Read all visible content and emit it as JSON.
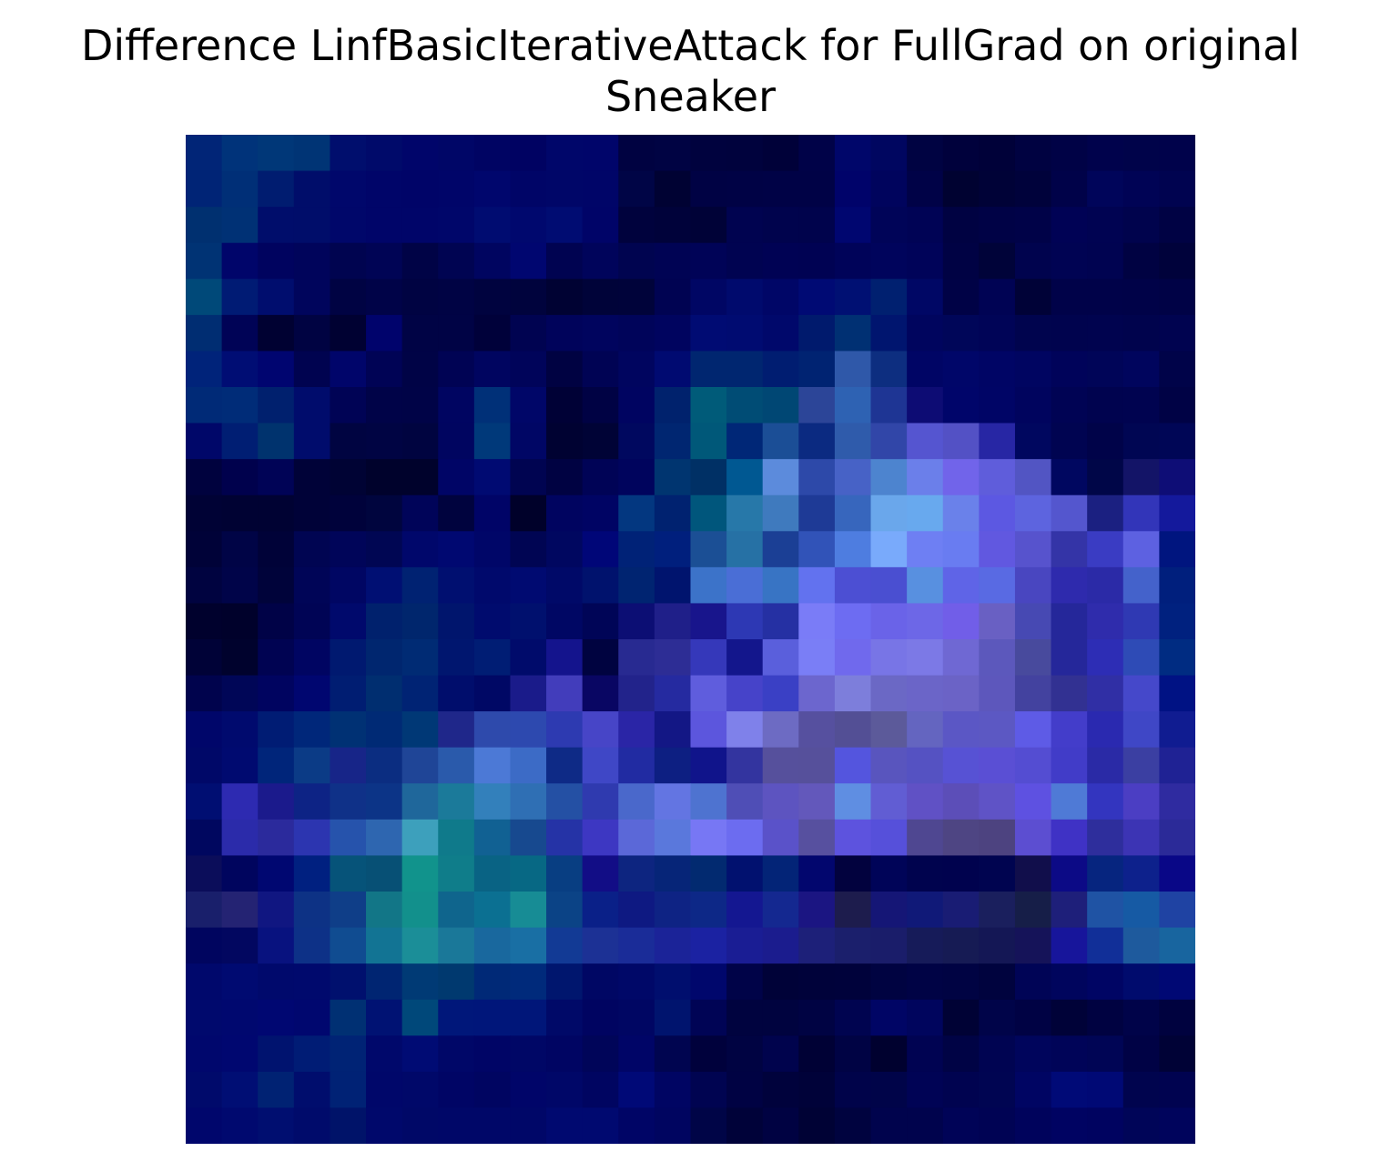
{
  "chart_data": {
    "type": "heatmap",
    "title_line1": "Difference LinfBasicIterativeAttack for FullGrad on original",
    "title_line2": "Sneaker",
    "xlabel": "",
    "ylabel": "",
    "axes_visible": false,
    "grid": false,
    "rows": 28,
    "cols": 28,
    "note_colors": "cell colors row-major, as rendered in the image",
    "cells": [
      [
        "#012577",
        "#00337a",
        "#003778",
        "#003475",
        "#000e6d",
        "#000a6a",
        "#00056a",
        "#000667",
        "#000463",
        "#000262",
        "#00066a",
        "#00056a",
        "#000241",
        "#000343",
        "#00023e",
        "#00023d",
        "#000139",
        "#000248",
        "#00066a",
        "#000660",
        "#000342",
        "#00013c",
        "#000139",
        "#000241",
        "#000246",
        "#00024c",
        "#00034a",
        "#00024b"
      ],
      [
        "#002476",
        "#002f77",
        "#001c70",
        "#000d6a",
        "#00076b",
        "#000569",
        "#000468",
        "#000569",
        "#00066d",
        "#000567",
        "#000668",
        "#000568",
        "#000546",
        "#000233",
        "#000244",
        "#000245",
        "#000246",
        "#000246",
        "#00036a",
        "#00045d",
        "#000247",
        "#000231",
        "#000237",
        "#00023b",
        "#000249",
        "#00055a",
        "#000355",
        "#000350"
      ],
      [
        "#003070",
        "#003175",
        "#000d6b",
        "#000d6a",
        "#00076a",
        "#000569",
        "#000569",
        "#00066a",
        "#000c71",
        "#00086e",
        "#000c72",
        "#000468",
        "#00023d",
        "#00023a",
        "#000237",
        "#000350",
        "#00034d",
        "#00034c",
        "#000670",
        "#000458",
        "#000355",
        "#000242",
        "#000246",
        "#000248",
        "#000255",
        "#000352",
        "#00034d",
        "#000244"
      ],
      [
        "#003374",
        "#00056a",
        "#00035f",
        "#00045b",
        "#000450",
        "#000455",
        "#000346",
        "#000452",
        "#000560",
        "#000670",
        "#000351",
        "#00045b",
        "#000450",
        "#000354",
        "#000357",
        "#000351",
        "#000254",
        "#000253",
        "#000359",
        "#00045c",
        "#000359",
        "#000244",
        "#000339",
        "#00034e",
        "#000353",
        "#000351",
        "#000242",
        "#00023b"
      ],
      [
        "#004979",
        "#001b74",
        "#000d6e",
        "#00055c",
        "#000343",
        "#000348",
        "#000342",
        "#000344",
        "#00033f",
        "#00033d",
        "#000233",
        "#000339",
        "#00033a",
        "#000352",
        "#000664",
        "#000a6d",
        "#000667",
        "#000a74",
        "#001073",
        "#002070",
        "#000765",
        "#000246",
        "#000354",
        "#000237",
        "#000249",
        "#000249",
        "#000248",
        "#000246"
      ],
      [
        "#002d72",
        "#000356",
        "#000132",
        "#000342",
        "#000132",
        "#00036c",
        "#000345",
        "#000345",
        "#00013a",
        "#000351",
        "#00035b",
        "#00045e",
        "#00045a",
        "#00045f",
        "#000b73",
        "#000b71",
        "#00086b",
        "#001a6d",
        "#003073",
        "#00156f",
        "#00055e",
        "#000659",
        "#000457",
        "#00044e",
        "#00034e",
        "#00034f",
        "#00034d",
        "#000350"
      ],
      [
        "#00237a",
        "#000d74",
        "#000570",
        "#000350",
        "#00056a",
        "#000355",
        "#000346",
        "#000354",
        "#000560",
        "#00045a",
        "#000242",
        "#000354",
        "#00055f",
        "#000a71",
        "#002670",
        "#002670",
        "#001d71",
        "#002372",
        "#2f58a9",
        "#0d2e80",
        "#000565",
        "#000669",
        "#000565",
        "#000561",
        "#00035a",
        "#000558",
        "#00055d",
        "#000349"
      ],
      [
        "#002a77",
        "#002c78",
        "#00206e",
        "#000c6c",
        "#000355",
        "#000348",
        "#000347",
        "#000561",
        "#003078",
        "#000668",
        "#000136",
        "#000244",
        "#000461",
        "#00226d",
        "#005b79",
        "#004c75",
        "#004774",
        "#2c4598",
        "#2e62b3",
        "#1e3594",
        "#0d0c74",
        "#00056a",
        "#000566",
        "#00045e",
        "#000354",
        "#00034f",
        "#000350",
        "#000245"
      ],
      [
        "#000769",
        "#001e73",
        "#00336e",
        "#000c6c",
        "#000441",
        "#000443",
        "#000440",
        "#000560",
        "#00397a",
        "#000665",
        "#000232",
        "#000336",
        "#00085f",
        "#002671",
        "#005879",
        "#002777",
        "#1b4e96",
        "#0b2a81",
        "#2f5bab",
        "#3146a8",
        "#5555d0",
        "#5351c5",
        "#2726a4",
        "#00075f",
        "#000451",
        "#000349",
        "#000653",
        "#000656"
      ],
      [
        "#00023e",
        "#00014d",
        "#000356",
        "#000238",
        "#000334",
        "#00022c",
        "#00022c",
        "#000566",
        "#000a72",
        "#000451",
        "#000242",
        "#000356",
        "#00045d",
        "#003570",
        "#003065",
        "#005892",
        "#5c8bdc",
        "#2d49a9",
        "#4762c6",
        "#4d84cf",
        "#6b7fea",
        "#7164ea",
        "#5f5ddb",
        "#5255c3",
        "#000760",
        "#000648",
        "#131467",
        "#0e0d76"
      ],
      [
        "#000235",
        "#000233",
        "#000233",
        "#000238",
        "#00023b",
        "#00053e",
        "#000459",
        "#00033e",
        "#000467",
        "#00012a",
        "#000460",
        "#000464",
        "#033780",
        "#002270",
        "#00567c",
        "#2778a9",
        "#3f7abe",
        "#1e3a96",
        "#3766bd",
        "#6aa7eb",
        "#68a9ee",
        "#6a81ea",
        "#5c58e2",
        "#5d64df",
        "#5456ce",
        "#1b2081",
        "#3235b9",
        "#14199c"
      ],
      [
        "#000238",
        "#000446",
        "#000238",
        "#000552",
        "#000559",
        "#000653",
        "#00076b",
        "#000871",
        "#000668",
        "#000553",
        "#000760",
        "#000678",
        "#002277",
        "#001f7d",
        "#1b4f95",
        "#2671a5",
        "#1b3f95",
        "#3153b8",
        "#4e7de0",
        "#79aafb",
        "#6e7ff3",
        "#697cf1",
        "#6158e0",
        "#5753cd",
        "#3434a7",
        "#3a3cc3",
        "#5d61e1",
        "#00157f"
      ],
      [
        "#000340",
        "#000449",
        "#00033a",
        "#000557",
        "#000663",
        "#000f73",
        "#002272",
        "#000f70",
        "#00096c",
        "#000a71",
        "#000968",
        "#00126d",
        "#002471",
        "#00146e",
        "#3c73c9",
        "#4a6ed6",
        "#3874c4",
        "#6272ef",
        "#4c4fd3",
        "#4a4fd1",
        "#5890e0",
        "#5f64e7",
        "#596ae3",
        "#4946c0",
        "#2e2aad",
        "#2b2aa7",
        "#4462cb",
        "#001f7d"
      ],
      [
        "#00012d",
        "#00012b",
        "#000247",
        "#000455",
        "#00096c",
        "#00216d",
        "#00266d",
        "#00156d",
        "#000b6e",
        "#00106e",
        "#000764",
        "#000557",
        "#0c0e74",
        "#1f1f89",
        "#18158c",
        "#2d38b4",
        "#2530a3",
        "#7a7cf7",
        "#6d6cf2",
        "#6a63e8",
        "#6d67e7",
        "#715ee8",
        "#6960c3",
        "#4749b3",
        "#25279a",
        "#2f2cac",
        "#2f39b3",
        "#00217f"
      ],
      [
        "#000237",
        "#00022d",
        "#000352",
        "#000562",
        "#001970",
        "#00266f",
        "#002b74",
        "#00166f",
        "#001d74",
        "#000b6b",
        "#14148d",
        "#000340",
        "#282a91",
        "#2d2d95",
        "#3538ba",
        "#13168c",
        "#5a5fdc",
        "#7a7ef6",
        "#7069ed",
        "#7875e6",
        "#7c79e6",
        "#6f68d3",
        "#5c58bc",
        "#484a9d",
        "#25279a",
        "#2d2db5",
        "#2e4bb6",
        "#002c82"
      ],
      [
        "#00034d",
        "#000657",
        "#000460",
        "#000670",
        "#001d72",
        "#002e70",
        "#002374",
        "#000d6c",
        "#000865",
        "#1a1b8a",
        "#423dbb",
        "#090663",
        "#22238b",
        "#252aa0",
        "#5f5ddd",
        "#4643c9",
        "#3a40c5",
        "#6c66ce",
        "#7d7edb",
        "#6b68c5",
        "#6b65c8",
        "#6b63c6",
        "#5d57bc",
        "#43429f",
        "#323192",
        "#302fa5",
        "#4548ca",
        "#001284"
      ],
      [
        "#00066a",
        "#000a6e",
        "#001c74",
        "#00277a",
        "#003174",
        "#002a75",
        "#003876",
        "#1f278a",
        "#2e4aac",
        "#2d49af",
        "#2d3ab1",
        "#4745c7",
        "#2a25a6",
        "#131785",
        "#5c56dd",
        "#7f81ea",
        "#6d6bc3",
        "#56509f",
        "#534f95",
        "#5c5a9a",
        "#6465c0",
        "#5b57c5",
        "#5c58c3",
        "#5e5be6",
        "#433dca",
        "#2a29b0",
        "#3f47c6",
        "#101c91"
      ],
      [
        "#000868",
        "#000a70",
        "#00257a",
        "#0b3b86",
        "#172588",
        "#0b2d81",
        "#1f4597",
        "#2a5aab",
        "#4c79d6",
        "#3c6bc6",
        "#0e2a86",
        "#3f47c6",
        "#212ba2",
        "#0d1f82",
        "#10148b",
        "#33349f",
        "#56509c",
        "#56509b",
        "#5455de",
        "#5955be",
        "#5552c2",
        "#5752d4",
        "#5a4fd4",
        "#544dd2",
        "#413cc8",
        "#2a2aa6",
        "#3b3fa2",
        "#1f2294"
      ],
      [
        "#000e72",
        "#2d2ab1",
        "#1b1a8c",
        "#0d2385",
        "#0f3188",
        "#0c3487",
        "#1f679b",
        "#1b7a9a",
        "#3380bb",
        "#2f6fb4",
        "#2450a4",
        "#2f3aaf",
        "#4a68cb",
        "#6375e2",
        "#4e73d0",
        "#4f4eb6",
        "#5d54c0",
        "#6358bb",
        "#5f8ee2",
        "#615dd3",
        "#6051c5",
        "#5c4eb8",
        "#5f53c6",
        "#5e51e1",
        "#4f7ad6",
        "#3335bf",
        "#4b3ec3",
        "#2f2ba0"
      ],
      [
        "#00075f",
        "#2b2baa",
        "#2b2a9c",
        "#2c35b0",
        "#2653ac",
        "#2e66b0",
        "#3da0bc",
        "#0f7a8b",
        "#116193",
        "#17498f",
        "#2533a6",
        "#3d37c2",
        "#5b68d8",
        "#5a78dc",
        "#7777f4",
        "#6c6cf0",
        "#5a52c9",
        "#57509f",
        "#5d53de",
        "#5650da",
        "#4f4791",
        "#4e4583",
        "#4d4380",
        "#5c4ed1",
        "#3f32c5",
        "#2e2e9c",
        "#3c34b4",
        "#2b2a98"
      ],
      [
        "#0b0d5a",
        "#00055e",
        "#000771",
        "#002080",
        "#065379",
        "#075075",
        "#11938c",
        "#0f7d8a",
        "#096384",
        "#076884",
        "#083e82",
        "#120d86",
        "#0d2580",
        "#062578",
        "#022a70",
        "#01116f",
        "#032477",
        "#02066e",
        "#02023e",
        "#000458",
        "#00034e",
        "#00024e",
        "#000450",
        "#110e4b",
        "#0c0a86",
        "#06257f",
        "#0d218c",
        "#090787"
      ],
      [
        "#191f6b",
        "#242373",
        "#101681",
        "#0d3285",
        "#0f3e88",
        "#127687",
        "#12908c",
        "#0f658d",
        "#0b7092",
        "#178c95",
        "#0b4386",
        "#0a2088",
        "#0e1982",
        "#0e2384",
        "#0d2887",
        "#141791",
        "#142890",
        "#1b1582",
        "#1d1c4d",
        "#151676",
        "#101978",
        "#191c74",
        "#1a1f5d",
        "#161e48",
        "#1e1f7a",
        "#1f53a4",
        "#165aa4",
        "#1f43a3"
      ],
      [
        "#00055f",
        "#020760",
        "#08127f",
        "#0d3187",
        "#104c91",
        "#127494",
        "#1b8e98",
        "#1a7899",
        "#19689e",
        "#196fa4",
        "#123a95",
        "#1c3195",
        "#1a2c98",
        "#1b2398",
        "#1b22a2",
        "#1a1d94",
        "#1b1c8e",
        "#1d2079",
        "#1b1f6c",
        "#1a1d6a",
        "#161b59",
        "#161b54",
        "#141755",
        "#151359",
        "#17159b",
        "#112f98",
        "#1e5a9d",
        "#18659f"
      ],
      [
        "#00086c",
        "#000a71",
        "#00096c",
        "#00096d",
        "#00106e",
        "#002572",
        "#003a75",
        "#00396f",
        "#002977",
        "#002a7b",
        "#00166e",
        "#000764",
        "#000868",
        "#000e6e",
        "#00076c",
        "#000348",
        "#000238",
        "#00023a",
        "#00023b",
        "#000341",
        "#000345",
        "#000343",
        "#00033e",
        "#000456",
        "#00055d",
        "#000564",
        "#000b6d",
        "#000874"
      ],
      [
        "#00096d",
        "#00086f",
        "#000772",
        "#00076f",
        "#003073",
        "#001273",
        "#00487a",
        "#00177a",
        "#00167a",
        "#001679",
        "#000968",
        "#000461",
        "#000663",
        "#00146e",
        "#000455",
        "#00033f",
        "#00033f",
        "#000343",
        "#000450",
        "#000565",
        "#00055d",
        "#000235",
        "#000449",
        "#000244",
        "#000238",
        "#000241",
        "#000349",
        "#00023f"
      ],
      [
        "#00076d",
        "#000770",
        "#00136f",
        "#001c75",
        "#002375",
        "#00086b",
        "#000b74",
        "#000768",
        "#000566",
        "#000766",
        "#000563",
        "#000559",
        "#000567",
        "#000550",
        "#00013c",
        "#000342",
        "#00034d",
        "#000135",
        "#000344",
        "#00012f",
        "#000352",
        "#000345",
        "#000452",
        "#00055c",
        "#000458",
        "#000555",
        "#000245",
        "#000236"
      ],
      [
        "#000a6b",
        "#000e74",
        "#002273",
        "#000d6d",
        "#002275",
        "#00076a",
        "#000869",
        "#000565",
        "#000561",
        "#000569",
        "#000768",
        "#000561",
        "#000977",
        "#000563",
        "#000451",
        "#000243",
        "#00023c",
        "#000239",
        "#00034a",
        "#000449",
        "#000355",
        "#000350",
        "#000552",
        "#000563",
        "#000a77",
        "#000975",
        "#00044e",
        "#000350"
      ],
      [
        "#00066c",
        "#00096f",
        "#000e70",
        "#000b6b",
        "#001369",
        "#00086b",
        "#000867",
        "#000768",
        "#000768",
        "#000768",
        "#000970",
        "#000970",
        "#000566",
        "#000560",
        "#000547",
        "#000239",
        "#000242",
        "#000235",
        "#00033f",
        "#00034d",
        "#00034d",
        "#000357",
        "#000354",
        "#00035c",
        "#000362",
        "#000360",
        "#000558",
        "#00045c"
      ]
    ]
  }
}
